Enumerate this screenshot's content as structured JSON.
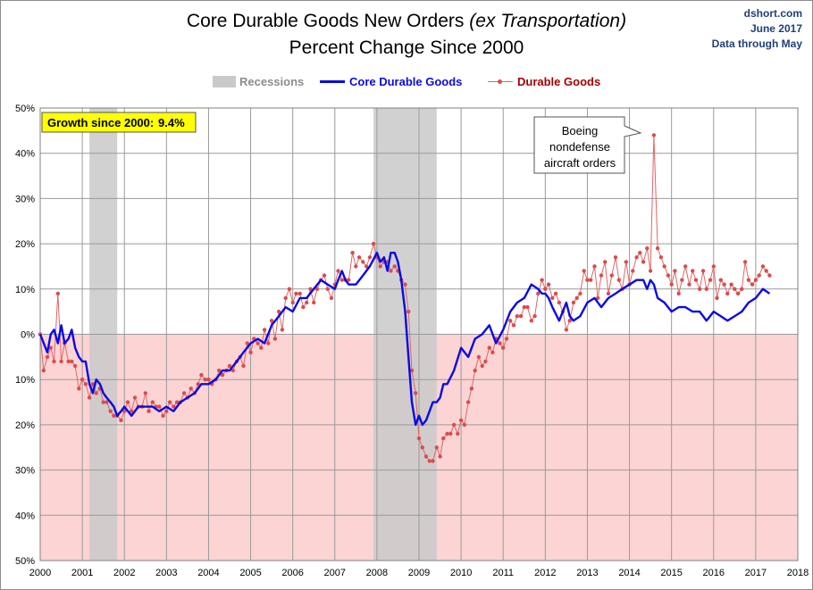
{
  "header": {
    "title_main": "Core Durable Goods New Orders",
    "title_italic": "(ex Transportation)",
    "subtitle": "Percent Change Since 2000",
    "source": "dshort.com",
    "date": "June 2017",
    "data_through": "Data through May"
  },
  "legend": {
    "recessions": "Recessions",
    "core": "Core Durable Goods",
    "durable": "Durable Goods"
  },
  "growth_box": {
    "label": "Growth since 2000:",
    "value": "9.4%"
  },
  "annotation": [
    "Boeing",
    "nondefense",
    "aircraft orders"
  ],
  "colors": {
    "core": "#0a0ae6",
    "durable": "#e06666",
    "durable_marker": "#d94c4c",
    "recession": "#c9c9c9",
    "negative_band": "#fcd4d4",
    "growth_box_bg": "#ffff00",
    "source_text": "#1f3f7a",
    "legend_durable_text": "#a40000"
  },
  "chart_data": {
    "type": "line",
    "x_unit": "year",
    "xlim": [
      2000,
      2018
    ],
    "x_ticks": [
      "2000",
      "2001",
      "2002",
      "2003",
      "2004",
      "2005",
      "2006",
      "2007",
      "2008",
      "2009",
      "2010",
      "2011",
      "2012",
      "2013",
      "2014",
      "2015",
      "2016",
      "2017",
      "2018"
    ],
    "ylim": [
      -50,
      50
    ],
    "y_ticks": [
      "50%",
      "40%",
      "30%",
      "20%",
      "10%",
      "0%",
      "10%",
      "20%",
      "30%",
      "40%",
      "50%"
    ],
    "grid": true,
    "legend_position": "top-center",
    "recessions": [
      [
        2001.17,
        2001.83
      ],
      [
        2007.92,
        2009.42
      ]
    ],
    "series": [
      {
        "name": "Core Durable Goods",
        "style": "line",
        "x": [
          2000.0,
          2000.17,
          2000.25,
          2000.33,
          2000.42,
          2000.5,
          2000.58,
          2000.67,
          2000.75,
          2000.83,
          2000.92,
          2001.0,
          2001.08,
          2001.17,
          2001.25,
          2001.33,
          2001.42,
          2001.5,
          2001.58,
          2001.67,
          2001.75,
          2001.83,
          2001.92,
          2002.0,
          2002.17,
          2002.33,
          2002.5,
          2002.67,
          2002.83,
          2003.0,
          2003.17,
          2003.33,
          2003.5,
          2003.67,
          2003.83,
          2004.0,
          2004.17,
          2004.33,
          2004.5,
          2004.67,
          2004.83,
          2005.0,
          2005.17,
          2005.33,
          2005.5,
          2005.67,
          2005.83,
          2006.0,
          2006.17,
          2006.33,
          2006.5,
          2006.67,
          2006.83,
          2007.0,
          2007.08,
          2007.17,
          2007.25,
          2007.33,
          2007.5,
          2007.67,
          2007.83,
          2008.0,
          2008.08,
          2008.17,
          2008.25,
          2008.33,
          2008.42,
          2008.5,
          2008.58,
          2008.67,
          2008.75,
          2008.83,
          2008.92,
          2009.0,
          2009.08,
          2009.17,
          2009.25,
          2009.33,
          2009.42,
          2009.5,
          2009.58,
          2009.67,
          2009.83,
          2010.0,
          2010.17,
          2010.33,
          2010.5,
          2010.67,
          2010.83,
          2011.0,
          2011.17,
          2011.33,
          2011.5,
          2011.67,
          2011.83,
          2011.92,
          2012.0,
          2012.08,
          2012.17,
          2012.33,
          2012.5,
          2012.58,
          2012.67,
          2012.83,
          2013.0,
          2013.17,
          2013.33,
          2013.5,
          2013.67,
          2013.83,
          2014.0,
          2014.17,
          2014.33,
          2014.42,
          2014.5,
          2014.58,
          2014.67,
          2014.83,
          2015.0,
          2015.17,
          2015.33,
          2015.5,
          2015.67,
          2015.83,
          2016.0,
          2016.17,
          2016.33,
          2016.5,
          2016.67,
          2016.83,
          2017.0,
          2017.17,
          2017.33
        ],
        "y": [
          0,
          -4,
          0,
          1,
          -2,
          2,
          -2,
          -1,
          1,
          -3,
          -5,
          -6,
          -6,
          -11,
          -13,
          -10,
          -11,
          -13,
          -14,
          -15,
          -16,
          -18,
          -17,
          -16,
          -18,
          -16,
          -16,
          -16,
          -17,
          -16,
          -17,
          -15,
          -14,
          -13,
          -11,
          -11,
          -10,
          -8,
          -8,
          -6,
          -4,
          -2,
          -1,
          -2,
          2,
          4,
          6,
          5,
          8,
          8,
          10,
          12,
          11,
          10,
          12,
          14,
          12,
          11,
          11,
          13,
          15,
          18,
          16,
          17,
          14,
          18,
          18,
          16,
          12,
          5,
          -5,
          -15,
          -20,
          -18,
          -20,
          -19,
          -17,
          -15,
          -15,
          -14,
          -11,
          -11,
          -8,
          -3,
          -5,
          -1,
          0,
          2,
          -2,
          1,
          5,
          7,
          8,
          11,
          10,
          9,
          9,
          8,
          6,
          3,
          7,
          4,
          3,
          4,
          7,
          8,
          6,
          8,
          9,
          10,
          11,
          12,
          12,
          10,
          12,
          11,
          8,
          7,
          5,
          6,
          6,
          5,
          5,
          3,
          5,
          4,
          3,
          4,
          5,
          7,
          8,
          10,
          9
        ]
      },
      {
        "name": "Durable Goods",
        "style": "line-markers",
        "x": [
          2000.0,
          2000.08,
          2000.17,
          2000.25,
          2000.33,
          2000.42,
          2000.5,
          2000.58,
          2000.67,
          2000.75,
          2000.83,
          2000.92,
          2001.0,
          2001.08,
          2001.17,
          2001.25,
          2001.33,
          2001.42,
          2001.5,
          2001.58,
          2001.67,
          2001.75,
          2001.83,
          2001.92,
          2002.0,
          2002.08,
          2002.17,
          2002.25,
          2002.33,
          2002.42,
          2002.5,
          2002.58,
          2002.67,
          2002.75,
          2002.83,
          2002.92,
          2003.0,
          2003.08,
          2003.17,
          2003.25,
          2003.33,
          2003.42,
          2003.5,
          2003.58,
          2003.67,
          2003.75,
          2003.83,
          2003.92,
          2004.0,
          2004.08,
          2004.17,
          2004.25,
          2004.33,
          2004.42,
          2004.5,
          2004.58,
          2004.67,
          2004.75,
          2004.83,
          2004.92,
          2005.0,
          2005.08,
          2005.17,
          2005.25,
          2005.33,
          2005.42,
          2005.5,
          2005.58,
          2005.67,
          2005.75,
          2005.83,
          2005.92,
          2006.0,
          2006.08,
          2006.17,
          2006.25,
          2006.33,
          2006.42,
          2006.5,
          2006.58,
          2006.67,
          2006.75,
          2006.83,
          2006.92,
          2007.0,
          2007.08,
          2007.17,
          2007.25,
          2007.33,
          2007.42,
          2007.5,
          2007.58,
          2007.67,
          2007.75,
          2007.83,
          2007.92,
          2008.0,
          2008.08,
          2008.17,
          2008.25,
          2008.33,
          2008.42,
          2008.5,
          2008.58,
          2008.67,
          2008.75,
          2008.83,
          2008.92,
          2009.0,
          2009.08,
          2009.17,
          2009.25,
          2009.33,
          2009.42,
          2009.5,
          2009.58,
          2009.67,
          2009.75,
          2009.83,
          2009.92,
          2010.0,
          2010.08,
          2010.17,
          2010.25,
          2010.33,
          2010.42,
          2010.5,
          2010.58,
          2010.67,
          2010.75,
          2010.83,
          2010.92,
          2011.0,
          2011.08,
          2011.17,
          2011.25,
          2011.33,
          2011.42,
          2011.5,
          2011.58,
          2011.67,
          2011.75,
          2011.83,
          2011.92,
          2012.0,
          2012.08,
          2012.17,
          2012.25,
          2012.33,
          2012.42,
          2012.5,
          2012.58,
          2012.67,
          2012.75,
          2012.83,
          2012.92,
          2013.0,
          2013.08,
          2013.17,
          2013.25,
          2013.33,
          2013.42,
          2013.5,
          2013.58,
          2013.67,
          2013.75,
          2013.83,
          2013.92,
          2014.0,
          2014.08,
          2014.17,
          2014.25,
          2014.33,
          2014.42,
          2014.5,
          2014.58,
          2014.67,
          2014.75,
          2014.83,
          2014.92,
          2015.0,
          2015.08,
          2015.17,
          2015.25,
          2015.33,
          2015.42,
          2015.5,
          2015.58,
          2015.67,
          2015.75,
          2015.83,
          2015.92,
          2016.0,
          2016.08,
          2016.17,
          2016.25,
          2016.33,
          2016.42,
          2016.5,
          2016.58,
          2016.67,
          2016.75,
          2016.83,
          2016.92,
          2017.0,
          2017.08,
          2017.17,
          2017.25,
          2017.33
        ],
        "y": [
          0,
          -8,
          -5,
          -3,
          -6,
          9,
          -6,
          -2,
          -6,
          -6,
          -7,
          -12,
          -10,
          -11,
          -14,
          -11,
          -13,
          -12,
          -15,
          -15,
          -17,
          -18,
          -18,
          -19,
          -17,
          -15,
          -17,
          -14,
          -16,
          -16,
          -13,
          -17,
          -15,
          -16,
          -16,
          -18,
          -17,
          -15,
          -16,
          -15,
          -15,
          -13,
          -14,
          -12,
          -13,
          -11,
          -9,
          -10,
          -10,
          -11,
          -10,
          -8,
          -9,
          -8,
          -7,
          -8,
          -6,
          -5,
          -7,
          -2,
          -4,
          -1,
          -2,
          -3,
          1,
          -2,
          3,
          -1,
          5,
          1,
          8,
          10,
          7,
          9,
          9,
          6,
          7,
          10,
          7,
          10,
          12,
          13,
          10,
          8,
          11,
          14,
          12,
          12,
          12,
          18,
          15,
          17,
          16,
          15,
          17,
          20,
          17,
          15,
          16,
          16,
          14,
          15,
          14,
          12,
          11,
          5,
          -8,
          -13,
          -23,
          -25,
          -27,
          -28,
          -28,
          -25,
          -27,
          -23,
          -22,
          -22,
          -20,
          -22,
          -19,
          -20,
          -15,
          -12,
          -8,
          -5,
          -7,
          -6,
          -3,
          -4,
          -1,
          -2,
          -3,
          -1,
          3,
          2,
          4,
          4,
          6,
          6,
          3,
          4,
          9,
          12,
          10,
          11,
          8,
          9,
          7,
          5,
          1,
          3,
          7,
          8,
          9,
          14,
          12,
          12,
          15,
          8,
          13,
          16,
          9,
          13,
          17,
          12,
          10,
          16,
          11,
          14,
          17,
          18,
          16,
          19,
          14,
          44,
          19,
          17,
          15,
          13,
          11,
          14,
          9,
          12,
          15,
          11,
          14,
          12,
          10,
          14,
          10,
          12,
          15,
          8,
          12,
          11,
          9,
          11,
          10,
          9,
          10,
          16,
          12,
          11,
          12,
          13,
          15,
          14,
          13
        ]
      }
    ]
  }
}
